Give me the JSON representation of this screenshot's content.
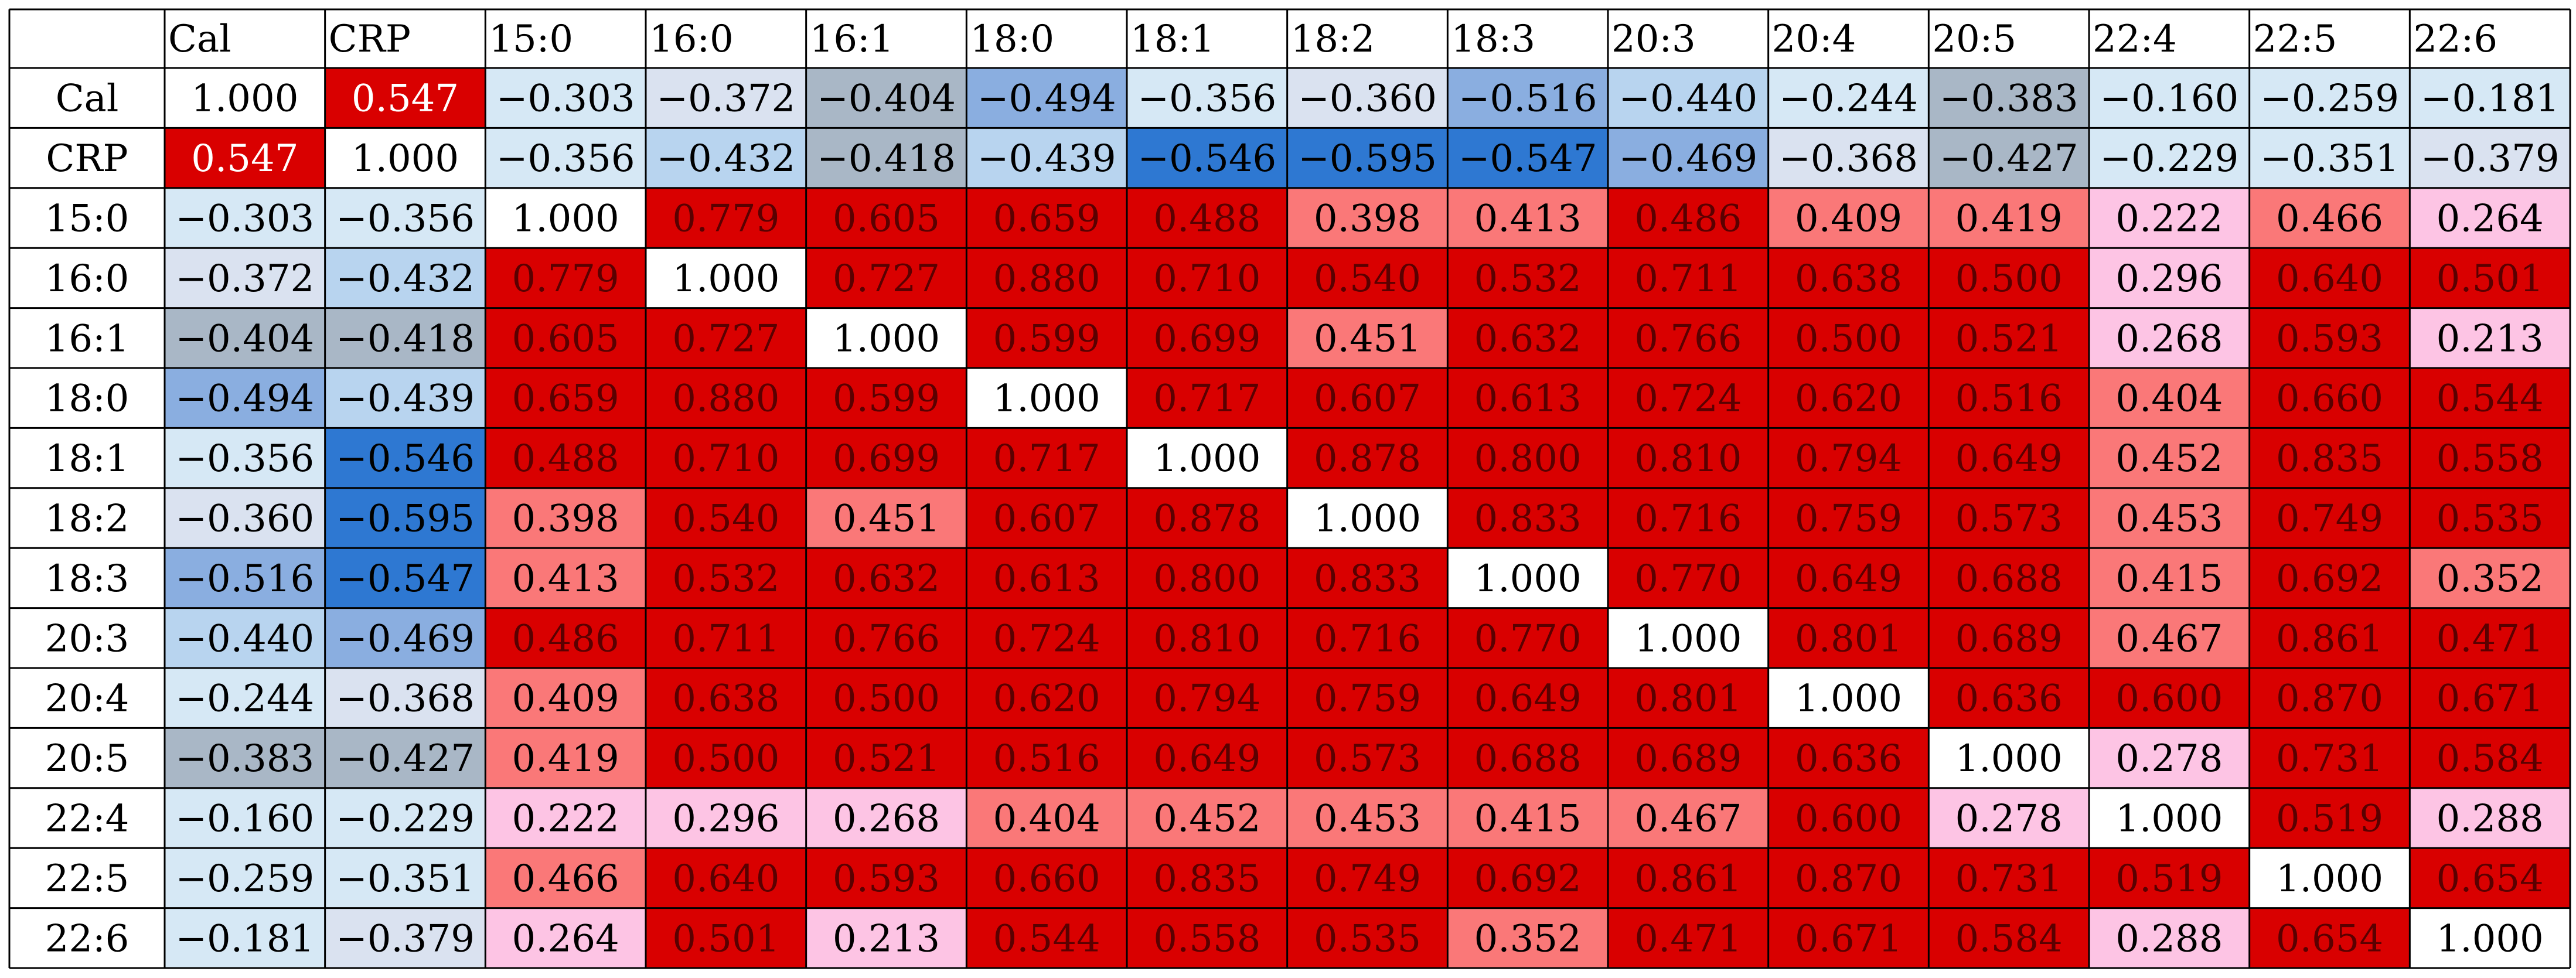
{
  "chart_data": {
    "type": "heatmap",
    "title": "",
    "xlabel": "",
    "ylabel": "",
    "labels": [
      "Cal",
      "CRP",
      "15:0",
      "16:0",
      "16:1",
      "18:0",
      "18:1",
      "18:2",
      "18:3",
      "20:3",
      "20:4",
      "20:5",
      "22:4",
      "22:5",
      "22:6"
    ],
    "matrix": [
      [
        "1.000",
        "0.547",
        "−0.303",
        "−0.372",
        "−0.404",
        "−0.494",
        "−0.356",
        "−0.360",
        "−0.516",
        "−0.440",
        "−0.244",
        "−0.383",
        "−0.160",
        "−0.259",
        "−0.181"
      ],
      [
        "0.547",
        "1.000",
        "−0.356",
        "−0.432",
        "−0.418",
        "−0.439",
        "−0.546",
        "−0.595",
        "−0.547",
        "−0.469",
        "−0.368",
        "−0.427",
        "−0.229",
        "−0.351",
        "−0.379"
      ],
      [
        "−0.303",
        "−0.356",
        "1.000",
        "0.779",
        "0.605",
        "0.659",
        "0.488",
        "0.398",
        "0.413",
        "0.486",
        "0.409",
        "0.419",
        "0.222",
        "0.466",
        "0.264"
      ],
      [
        "−0.372",
        "−0.432",
        "0.779",
        "1.000",
        "0.727",
        "0.880",
        "0.710",
        "0.540",
        "0.532",
        "0.711",
        "0.638",
        "0.500",
        "0.296",
        "0.640",
        "0.501"
      ],
      [
        "−0.404",
        "−0.418",
        "0.605",
        "0.727",
        "1.000",
        "0.599",
        "0.699",
        "0.451",
        "0.632",
        "0.766",
        "0.500",
        "0.521",
        "0.268",
        "0.593",
        "0.213"
      ],
      [
        "−0.494",
        "−0.439",
        "0.659",
        "0.880",
        "0.599",
        "1.000",
        "0.717",
        "0.607",
        "0.613",
        "0.724",
        "0.620",
        "0.516",
        "0.404",
        "0.660",
        "0.544"
      ],
      [
        "−0.356",
        "−0.546",
        "0.488",
        "0.710",
        "0.699",
        "0.717",
        "1.000",
        "0.878",
        "0.800",
        "0.810",
        "0.794",
        "0.649",
        "0.452",
        "0.835",
        "0.558"
      ],
      [
        "−0.360",
        "−0.595",
        "0.398",
        "0.540",
        "0.451",
        "0.607",
        "0.878",
        "1.000",
        "0.833",
        "0.716",
        "0.759",
        "0.573",
        "0.453",
        "0.749",
        "0.535"
      ],
      [
        "−0.516",
        "−0.547",
        "0.413",
        "0.532",
        "0.632",
        "0.613",
        "0.800",
        "0.833",
        "1.000",
        "0.770",
        "0.649",
        "0.688",
        "0.415",
        "0.692",
        "0.352"
      ],
      [
        "−0.440",
        "−0.469",
        "0.486",
        "0.711",
        "0.766",
        "0.724",
        "0.810",
        "0.716",
        "0.770",
        "1.000",
        "0.801",
        "0.689",
        "0.467",
        "0.861",
        "0.471"
      ],
      [
        "−0.244",
        "−0.368",
        "0.409",
        "0.638",
        "0.500",
        "0.620",
        "0.794",
        "0.759",
        "0.649",
        "0.801",
        "1.000",
        "0.636",
        "0.600",
        "0.870",
        "0.671"
      ],
      [
        "−0.383",
        "−0.427",
        "0.419",
        "0.500",
        "0.521",
        "0.516",
        "0.649",
        "0.573",
        "0.688",
        "0.689",
        "0.636",
        "1.000",
        "0.278",
        "0.731",
        "0.584"
      ],
      [
        "−0.160",
        "−0.229",
        "0.222",
        "0.296",
        "0.268",
        "0.404",
        "0.452",
        "0.453",
        "0.415",
        "0.467",
        "0.600",
        "0.278",
        "1.000",
        "0.519",
        "0.288"
      ],
      [
        "−0.259",
        "−0.351",
        "0.466",
        "0.640",
        "0.593",
        "0.660",
        "0.835",
        "0.749",
        "0.692",
        "0.861",
        "0.870",
        "0.731",
        "0.519",
        "1.000",
        "0.654"
      ],
      [
        "−0.181",
        "−0.379",
        "0.264",
        "0.501",
        "0.213",
        "0.544",
        "0.558",
        "0.535",
        "0.352",
        "0.471",
        "0.671",
        "0.584",
        "0.288",
        "0.654",
        "1.000"
      ]
    ],
    "colors": {
      "diagonal": "#ffffff",
      "strong_positive": "#d90000",
      "medium_positive": "#fa7878",
      "weak_positive": "#fdc4e4",
      "gray_blue": "#a9b7c6",
      "light_blue": "#d6e8f5",
      "pale_blue": "#dae2f0",
      "medium_blue": "#b8d4ef",
      "mid_blue": "#8aaee0",
      "strong_blue": "#2e78d2",
      "grid_line": "#000000"
    }
  }
}
